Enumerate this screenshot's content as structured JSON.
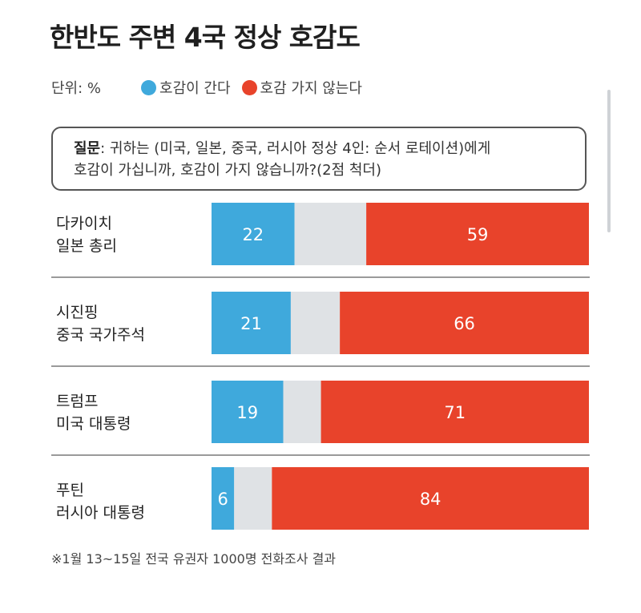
{
  "title": "한반도 주변 4국 정상 호감도",
  "unit_label": "단위: %",
  "legend": [
    {
      "label": "호감이 간다",
      "color": "#3fa9dc"
    },
    {
      "label": "호감 가지 않는다",
      "color": "#e8432b"
    }
  ],
  "question": {
    "label": "질문",
    "text_line1": ": 귀하는 (미국, 일본, 중국, 러시아 정상 4인: 순서 로테이션)에게",
    "text_line2": "호감이 가십니까, 호감이 가지 않습니까?(2점 척더)"
  },
  "rows": [
    {
      "line1": "다카이치",
      "line2": "일본 총리"
    },
    {
      "line1": "시진핑",
      "line2": "중국 국가주석"
    },
    {
      "line1": "트럼프",
      "line2": "미국 대통령"
    },
    {
      "line1": "푸틴",
      "line2": "러시아 대통령"
    }
  ],
  "footnote": "※1월 13~15일 전국 유권자 1000명 전화조사 결과",
  "chart_data": {
    "type": "bar",
    "stacked": true,
    "orientation": "horizontal",
    "categories": [
      "다카이치 일본 총리",
      "시진핑 중국 국가주석",
      "트럼프 미국 대통령",
      "푸틴 러시아 대통령"
    ],
    "series": [
      {
        "name": "호감이 간다",
        "values": [
          22,
          21,
          19,
          6
        ],
        "color": "#3fa9dc"
      },
      {
        "values": [
          19,
          13,
          10,
          10
        ],
        "color": "#dfe2e5"
      },
      {
        "name": "호감 가지 않는다",
        "values": [
          59,
          66,
          71,
          84
        ],
        "color": "#e8432b"
      }
    ],
    "xlim": [
      0,
      100
    ]
  }
}
